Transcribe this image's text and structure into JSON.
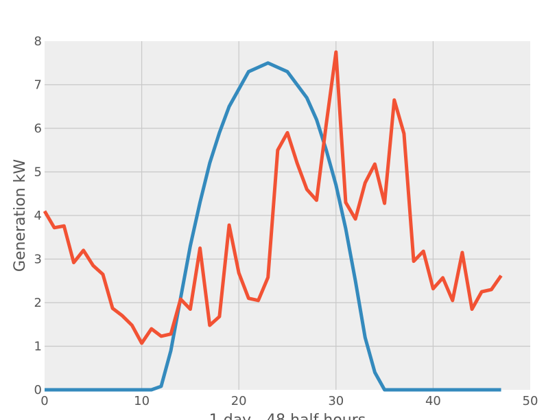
{
  "chart_data": {
    "type": "line",
    "title": "",
    "xlabel": "1 day - 48 half hours",
    "ylabel": "Generation kW",
    "xlim": [
      0,
      50
    ],
    "ylim": [
      0,
      8
    ],
    "x_ticks": [
      0,
      10,
      20,
      30,
      40,
      50
    ],
    "y_ticks": [
      0,
      1,
      2,
      3,
      4,
      5,
      6,
      7,
      8
    ],
    "grid": true,
    "x": [
      0,
      1,
      2,
      3,
      4,
      5,
      6,
      7,
      8,
      9,
      10,
      11,
      12,
      13,
      14,
      15,
      16,
      17,
      18,
      19,
      20,
      21,
      22,
      23,
      24,
      25,
      26,
      27,
      28,
      29,
      30,
      31,
      32,
      33,
      34,
      35,
      36,
      37,
      38,
      39,
      40,
      41,
      42,
      43,
      44,
      45,
      46,
      47
    ],
    "series": [
      {
        "color": "#348ABD",
        "values": [
          0,
          0,
          0,
          0,
          0,
          0,
          0,
          0,
          0,
          0,
          0,
          0,
          0.08,
          0.9,
          2.1,
          3.3,
          4.3,
          5.2,
          5.9,
          6.5,
          6.9,
          7.3,
          7.4,
          7.5,
          7.4,
          7.3,
          7.0,
          6.7,
          6.2,
          5.5,
          4.7,
          3.7,
          2.5,
          1.2,
          0.4,
          0,
          0,
          0,
          0,
          0,
          0,
          0,
          0,
          0,
          0,
          0,
          0,
          0
        ]
      },
      {
        "color": "#F25234",
        "values": [
          4.1,
          3.72,
          3.76,
          2.92,
          3.2,
          2.85,
          2.65,
          1.87,
          1.7,
          1.48,
          1.07,
          1.4,
          1.23,
          1.28,
          2.08,
          1.85,
          3.25,
          1.48,
          1.68,
          3.78,
          2.68,
          2.1,
          2.05,
          2.58,
          5.5,
          5.9,
          5.2,
          4.6,
          4.35,
          6.1,
          7.75,
          4.3,
          3.92,
          4.75,
          5.18,
          4.28,
          6.65,
          5.88,
          2.95,
          3.18,
          2.32,
          2.57,
          2.05,
          3.15,
          1.85,
          2.25,
          2.3,
          2.62
        ]
      }
    ]
  }
}
